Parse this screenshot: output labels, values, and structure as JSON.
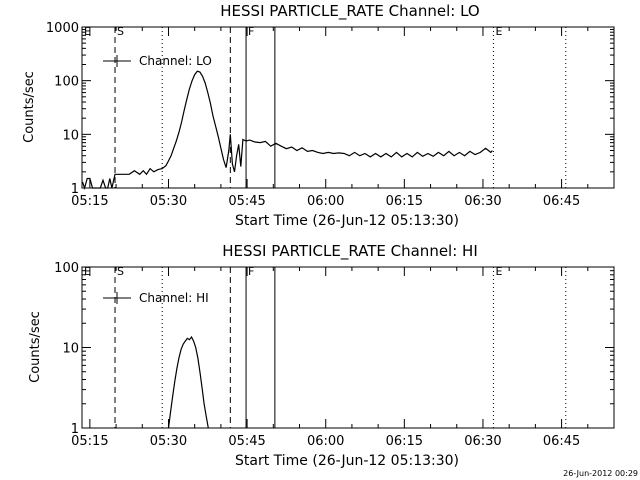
{
  "footer_timestamp": "26-Jun-2012 00:29",
  "chart_data": [
    {
      "type": "line",
      "title": "HESSI PARTICLE_RATE Channel: LO",
      "xlabel": "Start Time (26-Jun-12 05:13:30)",
      "ylabel": "Counts/sec",
      "y_scale": "log",
      "xlim_minutes": [
        313.5,
        415
      ],
      "ylim": [
        1,
        1000
      ],
      "x_tick_labels": [
        "05:15",
        "05:30",
        "05:45",
        "06:00",
        "06:15",
        "06:30",
        "06:45"
      ],
      "x_tick_minutes": [
        315,
        330,
        345,
        360,
        375,
        390,
        405
      ],
      "y_tick_labels": [
        "1",
        "10",
        "100",
        "1000"
      ],
      "y_tick_values": [
        1,
        10,
        100,
        1000
      ],
      "legend": {
        "label": "Channel: LO",
        "position": "top-left"
      },
      "markers": [
        {
          "minute": 319.8,
          "style": "dashed",
          "label": "S"
        },
        {
          "minute": 328.8,
          "style": "dotted",
          "label": ""
        },
        {
          "minute": 341.8,
          "style": "dashed",
          "label": ""
        },
        {
          "minute": 344.8,
          "style": "solid",
          "label": "F"
        },
        {
          "minute": 350.3,
          "style": "solid",
          "label": ""
        },
        {
          "minute": 392.0,
          "style": "dotted",
          "label": "E"
        },
        {
          "minute": 405.8,
          "style": "dotted",
          "label": ""
        }
      ],
      "edge_label": "E",
      "series": [
        {
          "name": "Channel: LO",
          "x": [
            313.6,
            314.0,
            314.5,
            315.0,
            315.5,
            316.0,
            316.5,
            317.0,
            317.5,
            318.0,
            318.4,
            318.8,
            319.2,
            319.8,
            320.5,
            321.5,
            322.5,
            323.5,
            324.5,
            325.2,
            325.8,
            326.5,
            327.2,
            328.0,
            328.8,
            329.5,
            330.0,
            330.5,
            331.0,
            331.5,
            332.0,
            332.5,
            333.0,
            333.5,
            334.0,
            334.5,
            335.0,
            335.5,
            336.0,
            336.5,
            337.0,
            337.5,
            338.0,
            338.5,
            339.0,
            339.5,
            340.0,
            340.5,
            341.0,
            341.5,
            341.8,
            342.2,
            342.6,
            343.0,
            343.4,
            343.8,
            344.2,
            344.8,
            345.5,
            346.5,
            347.5,
            348.5,
            349.5,
            350.5,
            351.5,
            352.5,
            353.5,
            354.5,
            355.5,
            356.5,
            357.5,
            358.5,
            359.5,
            360.5,
            361.5,
            362.5,
            363.5,
            364.5,
            365.5,
            366.5,
            367.5,
            368.5,
            369.5,
            370.5,
            371.5,
            372.5,
            373.5,
            374.5,
            375.5,
            376.5,
            377.5,
            378.5,
            379.5,
            380.5,
            381.5,
            382.5,
            383.5,
            384.5,
            385.5,
            386.5,
            387.5,
            388.5,
            389.5,
            390.5,
            391.5,
            391.8
          ],
          "values": [
            1.3,
            1.0,
            1.5,
            1.5,
            1.0,
            1.0,
            1.0,
            1.0,
            1.4,
            1.0,
            1.0,
            1.5,
            1.0,
            1.8,
            1.8,
            1.8,
            1.8,
            2.1,
            1.8,
            2.1,
            1.8,
            2.3,
            2.0,
            2.2,
            2.3,
            2.6,
            3.2,
            4.0,
            5.5,
            7.5,
            11,
            17,
            28,
            45,
            70,
            100,
            130,
            150,
            145,
            120,
            90,
            60,
            38,
            22,
            14,
            9,
            5.5,
            3.4,
            2.4,
            5.0,
            10,
            2.8,
            2.0,
            4.0,
            6.5,
            2.5,
            8.0,
            7.5,
            7.8,
            7.2,
            7.0,
            7.4,
            6.0,
            6.8,
            6.0,
            5.4,
            5.8,
            5.0,
            5.6,
            4.8,
            5.0,
            4.6,
            4.4,
            4.6,
            4.4,
            4.5,
            4.4,
            4.0,
            4.6,
            4.0,
            4.4,
            3.8,
            4.4,
            3.8,
            4.4,
            3.8,
            4.6,
            3.8,
            4.4,
            3.8,
            4.6,
            3.9,
            4.4,
            3.9,
            4.6,
            4.0,
            4.8,
            4.0,
            4.6,
            4.0,
            4.8,
            4.2,
            4.6,
            5.5,
            4.6,
            5.0
          ]
        }
      ]
    },
    {
      "type": "line",
      "title": "HESSI PARTICLE_RATE Channel: HI",
      "xlabel": "Start Time (26-Jun-12 05:13:30)",
      "ylabel": "Counts/sec",
      "y_scale": "log",
      "xlim_minutes": [
        313.5,
        415
      ],
      "ylim": [
        1,
        100
      ],
      "x_tick_labels": [
        "05:15",
        "05:30",
        "05:45",
        "06:00",
        "06:15",
        "06:30",
        "06:45"
      ],
      "x_tick_minutes": [
        315,
        330,
        345,
        360,
        375,
        390,
        405
      ],
      "y_tick_labels": [
        "1",
        "10",
        "100"
      ],
      "y_tick_values": [
        1,
        10,
        100
      ],
      "legend": {
        "label": "Channel: HI",
        "position": "top-left"
      },
      "markers": [
        {
          "minute": 319.8,
          "style": "dashed",
          "label": "S"
        },
        {
          "minute": 328.8,
          "style": "dotted",
          "label": ""
        },
        {
          "minute": 341.8,
          "style": "dashed",
          "label": ""
        },
        {
          "minute": 344.8,
          "style": "solid",
          "label": "F"
        },
        {
          "minute": 350.3,
          "style": "solid",
          "label": ""
        },
        {
          "minute": 392.0,
          "style": "dotted",
          "label": "E"
        },
        {
          "minute": 405.8,
          "style": "dotted",
          "label": ""
        }
      ],
      "edge_label": "E",
      "series": [
        {
          "name": "Channel: HI",
          "x": [
            330.0,
            330.4,
            330.8,
            331.2,
            331.6,
            332.0,
            332.4,
            332.8,
            333.2,
            333.6,
            334.0,
            334.4,
            334.8,
            335.2,
            335.6,
            336.0,
            336.4,
            336.8,
            337.2,
            337.6
          ],
          "values": [
            1.0,
            1.6,
            2.5,
            3.8,
            5.5,
            7.5,
            9.5,
            11,
            12,
            13,
            12.5,
            13.5,
            12,
            10,
            7.5,
            5.0,
            3.2,
            2.0,
            1.4,
            1.0
          ]
        }
      ]
    }
  ]
}
